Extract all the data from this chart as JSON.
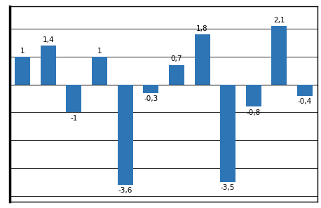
{
  "values": [
    1,
    1.4,
    -1,
    1,
    -3.6,
    -0.3,
    0.7,
    1.8,
    -3.5,
    -0.8,
    2.1,
    -0.4
  ],
  "bar_color": "#2E75B6",
  "ylim": [
    -4.2,
    2.8
  ],
  "yticks": [
    -4,
    -3,
    -2,
    -1,
    0,
    1,
    2
  ],
  "label_fontsize": 7.5,
  "background_color": "#FFFFFF",
  "grid_color": "#000000",
  "label_color": "#000000",
  "frame_color": "#000000"
}
